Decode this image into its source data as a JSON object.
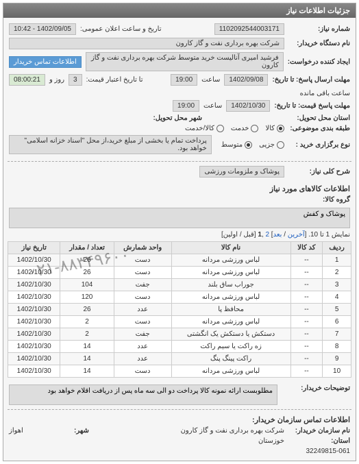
{
  "panel_title": "جزئیات اطلاعات نیاز",
  "header": {
    "req_no_label": "شماره نیاز:",
    "req_no": "1102092544003171",
    "announce_label": "تاریخ و ساعت اعلان عمومی:",
    "announce_value": "1402/09/05 - 10:42",
    "buyer_org_label": "نام دستگاه خریدار:",
    "buyer_org": "شرکت بهره برداری نفت و گاز کارون",
    "requester_label": "ایجاد کننده درخواست:",
    "requester": "فرشید امیری آنالیست خرید متوسط شرکت بهره برداری نفت و گاز کارون",
    "contact_btn": "اطلاعات تماس خریدار",
    "deadline_send_label": "مهلت ارسال پاسخ: تا تاریخ:",
    "deadline_send_date": "1402/09/08",
    "time_label": "ساعت",
    "deadline_send_time": "19:00",
    "credit_label": "تا تاریخ اعتبار قیمت:",
    "days_label": "روز و",
    "days_value": "3",
    "remain_time": "08:00:21",
    "remain_label": "ساعت باقی مانده",
    "price_deadline_label": "مهلت پاسخ قیمت: تا تاریخ:",
    "price_deadline_date": "1402/10/30",
    "price_deadline_time": "19:00",
    "delivery_province_label": "استان محل تحویل:",
    "delivery_city_label": "شهر محل تحویل:",
    "class_label": "طبقه بندی موضوعی:",
    "class_options": {
      "goods": "کالا",
      "service": "خدمت",
      "both": "کالا/خدمت"
    },
    "class_selected": "goods",
    "purchase_type_label": "نوع برگزاری خرید :",
    "purchase_options": {
      "small": "جزیی",
      "medium": "متوسط"
    },
    "purchase_selected": "medium",
    "payment_note": "پرداخت تمام یا بخشی از مبلغ خرید،از محل \"اسناد خزانه اسلامی\" خواهد بود."
  },
  "summary": {
    "title_label": "شرح کلی نیاز:",
    "title_value": "پوشاک و ملزومات ورزشی",
    "goods_section": "اطلاعات کالاهای مورد نیاز",
    "group_label": "گروه کالا:",
    "group_value": "پوشاک و کفش"
  },
  "pager": {
    "text_prefix": "نمایش 1 تا 10. [",
    "last": "آخرین",
    "sep": " / ",
    "next": "بعد",
    "text_mid": "] ",
    "p1": "1",
    "p2": "2",
    "comma": " ,",
    "text_suffix": " [قبل / اولین]"
  },
  "table": {
    "headers": [
      "ردیف",
      "کد کالا",
      "نام کالا",
      "واحد شمارش",
      "تعداد / مقدار",
      "تاریخ نیاز"
    ],
    "rows": [
      [
        "1",
        "--",
        "لباس ورزشی مردانه",
        "دست",
        "26",
        "1402/10/30"
      ],
      [
        "2",
        "--",
        "لباس ورزشی مردانه",
        "دست",
        "26",
        "1402/10/30"
      ],
      [
        "3",
        "--",
        "جوراب ساق بلند",
        "جفت",
        "104",
        "1402/10/30"
      ],
      [
        "4",
        "--",
        "لباس ورزشی مردانه",
        "دست",
        "120",
        "1402/10/30"
      ],
      [
        "5",
        "--",
        "محافظ پا",
        "عدد",
        "26",
        "1402/10/30"
      ],
      [
        "6",
        "--",
        "لباس ورزشی مردانه",
        "دست",
        "2",
        "1402/10/30"
      ],
      [
        "7",
        "--",
        "دستکش یا دستکش یک انگشتی",
        "جفت",
        "2",
        "1402/10/30"
      ],
      [
        "8",
        "--",
        "زه راکت یا سیم راکت",
        "عدد",
        "14",
        "1402/10/30"
      ],
      [
        "9",
        "--",
        "راکت پینگ پنگ",
        "عدد",
        "14",
        "1402/10/30"
      ],
      [
        "10",
        "--",
        "لباس ورزشی مردانه",
        "دست",
        "14",
        "1402/10/30"
      ]
    ]
  },
  "notes": {
    "buyer_label": "توضیحات خریدار:",
    "buyer_text": "مطلوبست ارائه نمونه کالا پرداخت دو الی سه ماه پس از دریافت اقلام خواهد بود"
  },
  "contact": {
    "section": "اطلاعات تماس سازمان خریدار:",
    "org_label": "نام سازمان خریدار:",
    "org": "شرکت بهره برداری نفت و گاز کارون",
    "province_label": "استان:",
    "province": "خوزستان",
    "city_label": "شهر:",
    "city": "اهواز",
    "phone": "32249815-061"
  },
  "watermark": "۰۲۱-۸۸۳۴۹۶۰۰"
}
